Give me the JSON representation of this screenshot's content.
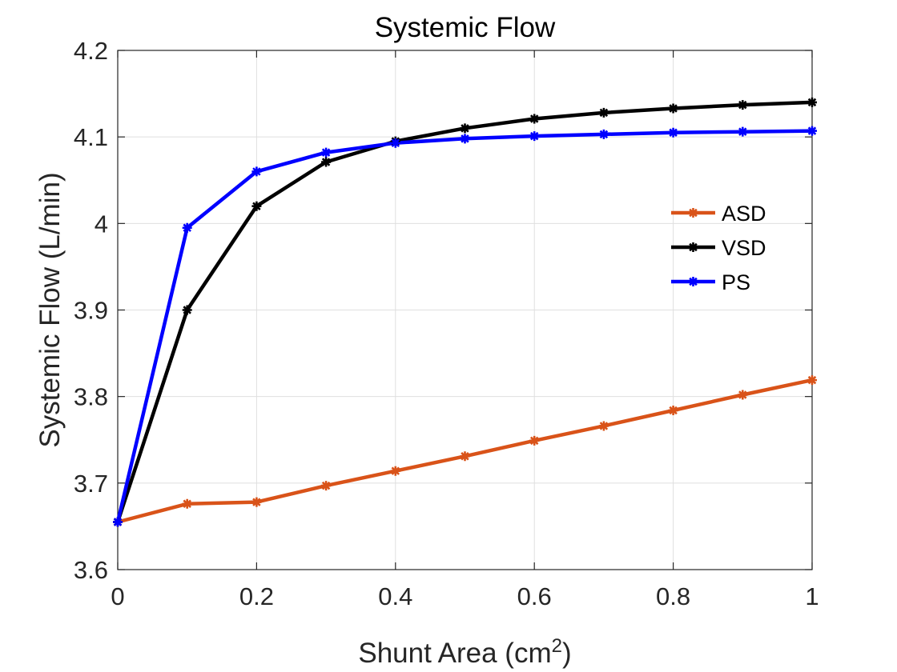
{
  "chart_data": {
    "type": "line",
    "title": "Systemic Flow",
    "xlabel": "Shunt Area (cm",
    "xlabel_sup": "2",
    "xlabel_close": ")",
    "ylabel": "Systemic Flow (L/min)",
    "x": [
      0,
      0.1,
      0.2,
      0.3,
      0.4,
      0.5,
      0.6,
      0.7,
      0.8,
      0.9,
      1.0
    ],
    "xlim": [
      0,
      1
    ],
    "ylim": [
      3.6,
      4.2
    ],
    "xticks": [
      0,
      0.2,
      0.4,
      0.6,
      0.8,
      1
    ],
    "xtick_labels": [
      "0",
      "0.2",
      "0.4",
      "0.6",
      "0.8",
      "1"
    ],
    "yticks": [
      3.6,
      3.7,
      3.8,
      3.9,
      4.0,
      4.1,
      4.2
    ],
    "ytick_labels": [
      "3.6",
      "3.7",
      "3.8",
      "3.9",
      "4",
      "4.1",
      "4.2"
    ],
    "grid": true,
    "legend_position": "right",
    "series": [
      {
        "name": "ASD",
        "color": "#D95319",
        "values": [
          3.655,
          3.676,
          3.678,
          3.697,
          3.714,
          3.731,
          3.749,
          3.766,
          3.784,
          3.802,
          3.819
        ]
      },
      {
        "name": "VSD",
        "color": "#000000",
        "values": [
          3.655,
          3.9,
          4.02,
          4.071,
          4.095,
          4.11,
          4.121,
          4.128,
          4.133,
          4.137,
          4.14
        ]
      },
      {
        "name": "PS",
        "color": "#0000FF",
        "values": [
          3.655,
          3.995,
          4.06,
          4.082,
          4.093,
          4.098,
          4.101,
          4.103,
          4.105,
          4.106,
          4.107
        ]
      }
    ]
  }
}
